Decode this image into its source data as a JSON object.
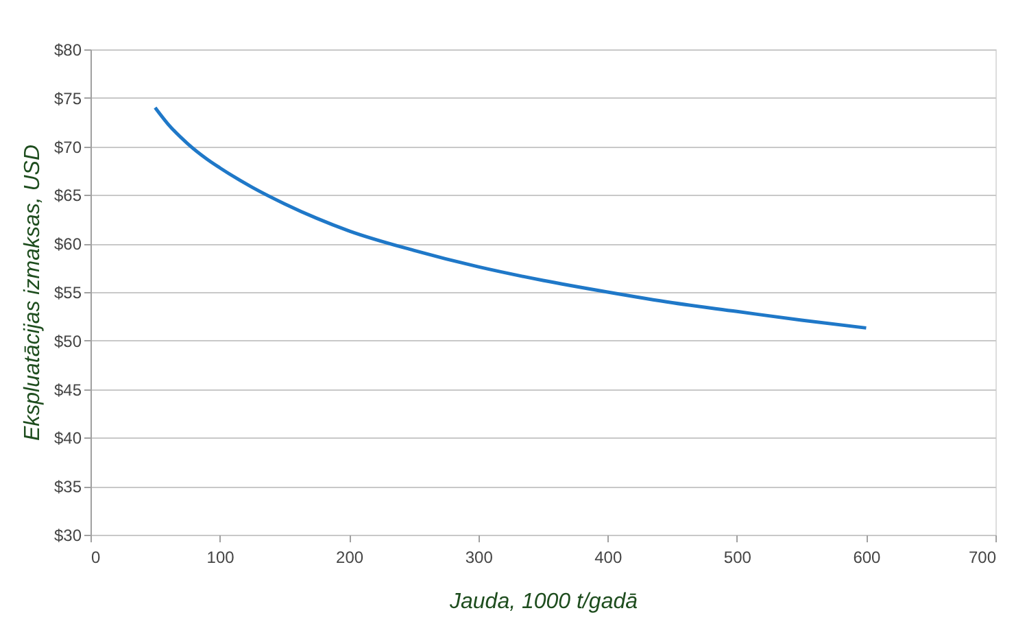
{
  "chart_data": {
    "type": "line",
    "xlabel": "Jauda, 1000 t/gadā",
    "ylabel": "Ekspluatācijas izmaksas, USD",
    "x": [
      50,
      60,
      75,
      90,
      100,
      125,
      150,
      175,
      200,
      250,
      300,
      350,
      400,
      450,
      500,
      550,
      600
    ],
    "series": [
      {
        "color": "#1f78c8",
        "values": [
          74.0,
          72.3,
          70.3,
          68.7,
          67.8,
          65.8,
          64.1,
          62.6,
          61.3,
          59.3,
          57.6,
          56.2,
          55.0,
          53.9,
          53.0,
          52.1,
          51.3
        ]
      }
    ],
    "xlim": [
      0,
      700
    ],
    "xticks": [
      0,
      100,
      200,
      300,
      400,
      500,
      600,
      700
    ],
    "ylim": [
      30,
      80
    ],
    "yticks": [
      {
        "value": 30,
        "label": "$30"
      },
      {
        "value": 35,
        "label": "$35"
      },
      {
        "value": 40,
        "label": "$40"
      },
      {
        "value": 45,
        "label": "$45"
      },
      {
        "value": 50,
        "label": "$50"
      },
      {
        "value": 55,
        "label": "$55"
      },
      {
        "value": 60,
        "label": "$60"
      },
      {
        "value": 65,
        "label": "$65"
      },
      {
        "value": 70,
        "label": "$70"
      },
      {
        "value": 75,
        "label": "$75"
      },
      {
        "value": 80,
        "label": "$80"
      }
    ],
    "grid": "y",
    "marker": "none",
    "line_style": "solid"
  }
}
